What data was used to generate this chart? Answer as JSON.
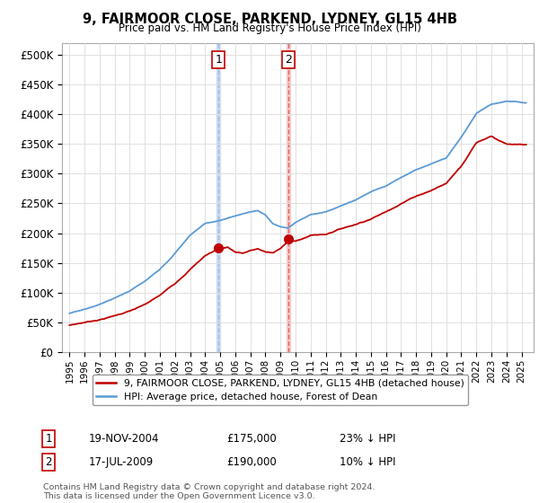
{
  "title": "9, FAIRMOOR CLOSE, PARKEND, LYDNEY, GL15 4HB",
  "subtitle": "Price paid vs. HM Land Registry's House Price Index (HPI)",
  "ylabel_ticks": [
    "£0",
    "£50K",
    "£100K",
    "£150K",
    "£200K",
    "£250K",
    "£300K",
    "£350K",
    "£400K",
    "£450K",
    "£500K"
  ],
  "ytick_values": [
    0,
    50000,
    100000,
    150000,
    200000,
    250000,
    300000,
    350000,
    400000,
    450000,
    500000
  ],
  "ylim": [
    0,
    520000
  ],
  "xlim_start": 1994.5,
  "xlim_end": 2025.8,
  "hpi_color": "#5b9bd5",
  "price_color": "#c00000",
  "sale1_x": 2004.89,
  "sale1_y": 175000,
  "sale1_label": "1",
  "sale1_date": "19-NOV-2004",
  "sale1_price": "£175,000",
  "sale1_note": "23% ↓ HPI",
  "sale2_x": 2009.54,
  "sale2_y": 190000,
  "sale2_label": "2",
  "sale2_date": "17-JUL-2009",
  "sale2_price": "£190,000",
  "sale2_note": "10% ↓ HPI",
  "vline1_color": "#c9daf8",
  "vline2_color": "#f4cccc",
  "vline1_dash": "#a0b8d8",
  "vline2_dash": "#e06060",
  "legend_line1": "9, FAIRMOOR CLOSE, PARKEND, LYDNEY, GL15 4HB (detached house)",
  "legend_line2": "HPI: Average price, detached house, Forest of Dean",
  "footnote": "Contains HM Land Registry data © Crown copyright and database right 2024.\nThis data is licensed under the Open Government Licence v3.0.",
  "background_color": "#ffffff",
  "grid_color": "#e0e0e0"
}
